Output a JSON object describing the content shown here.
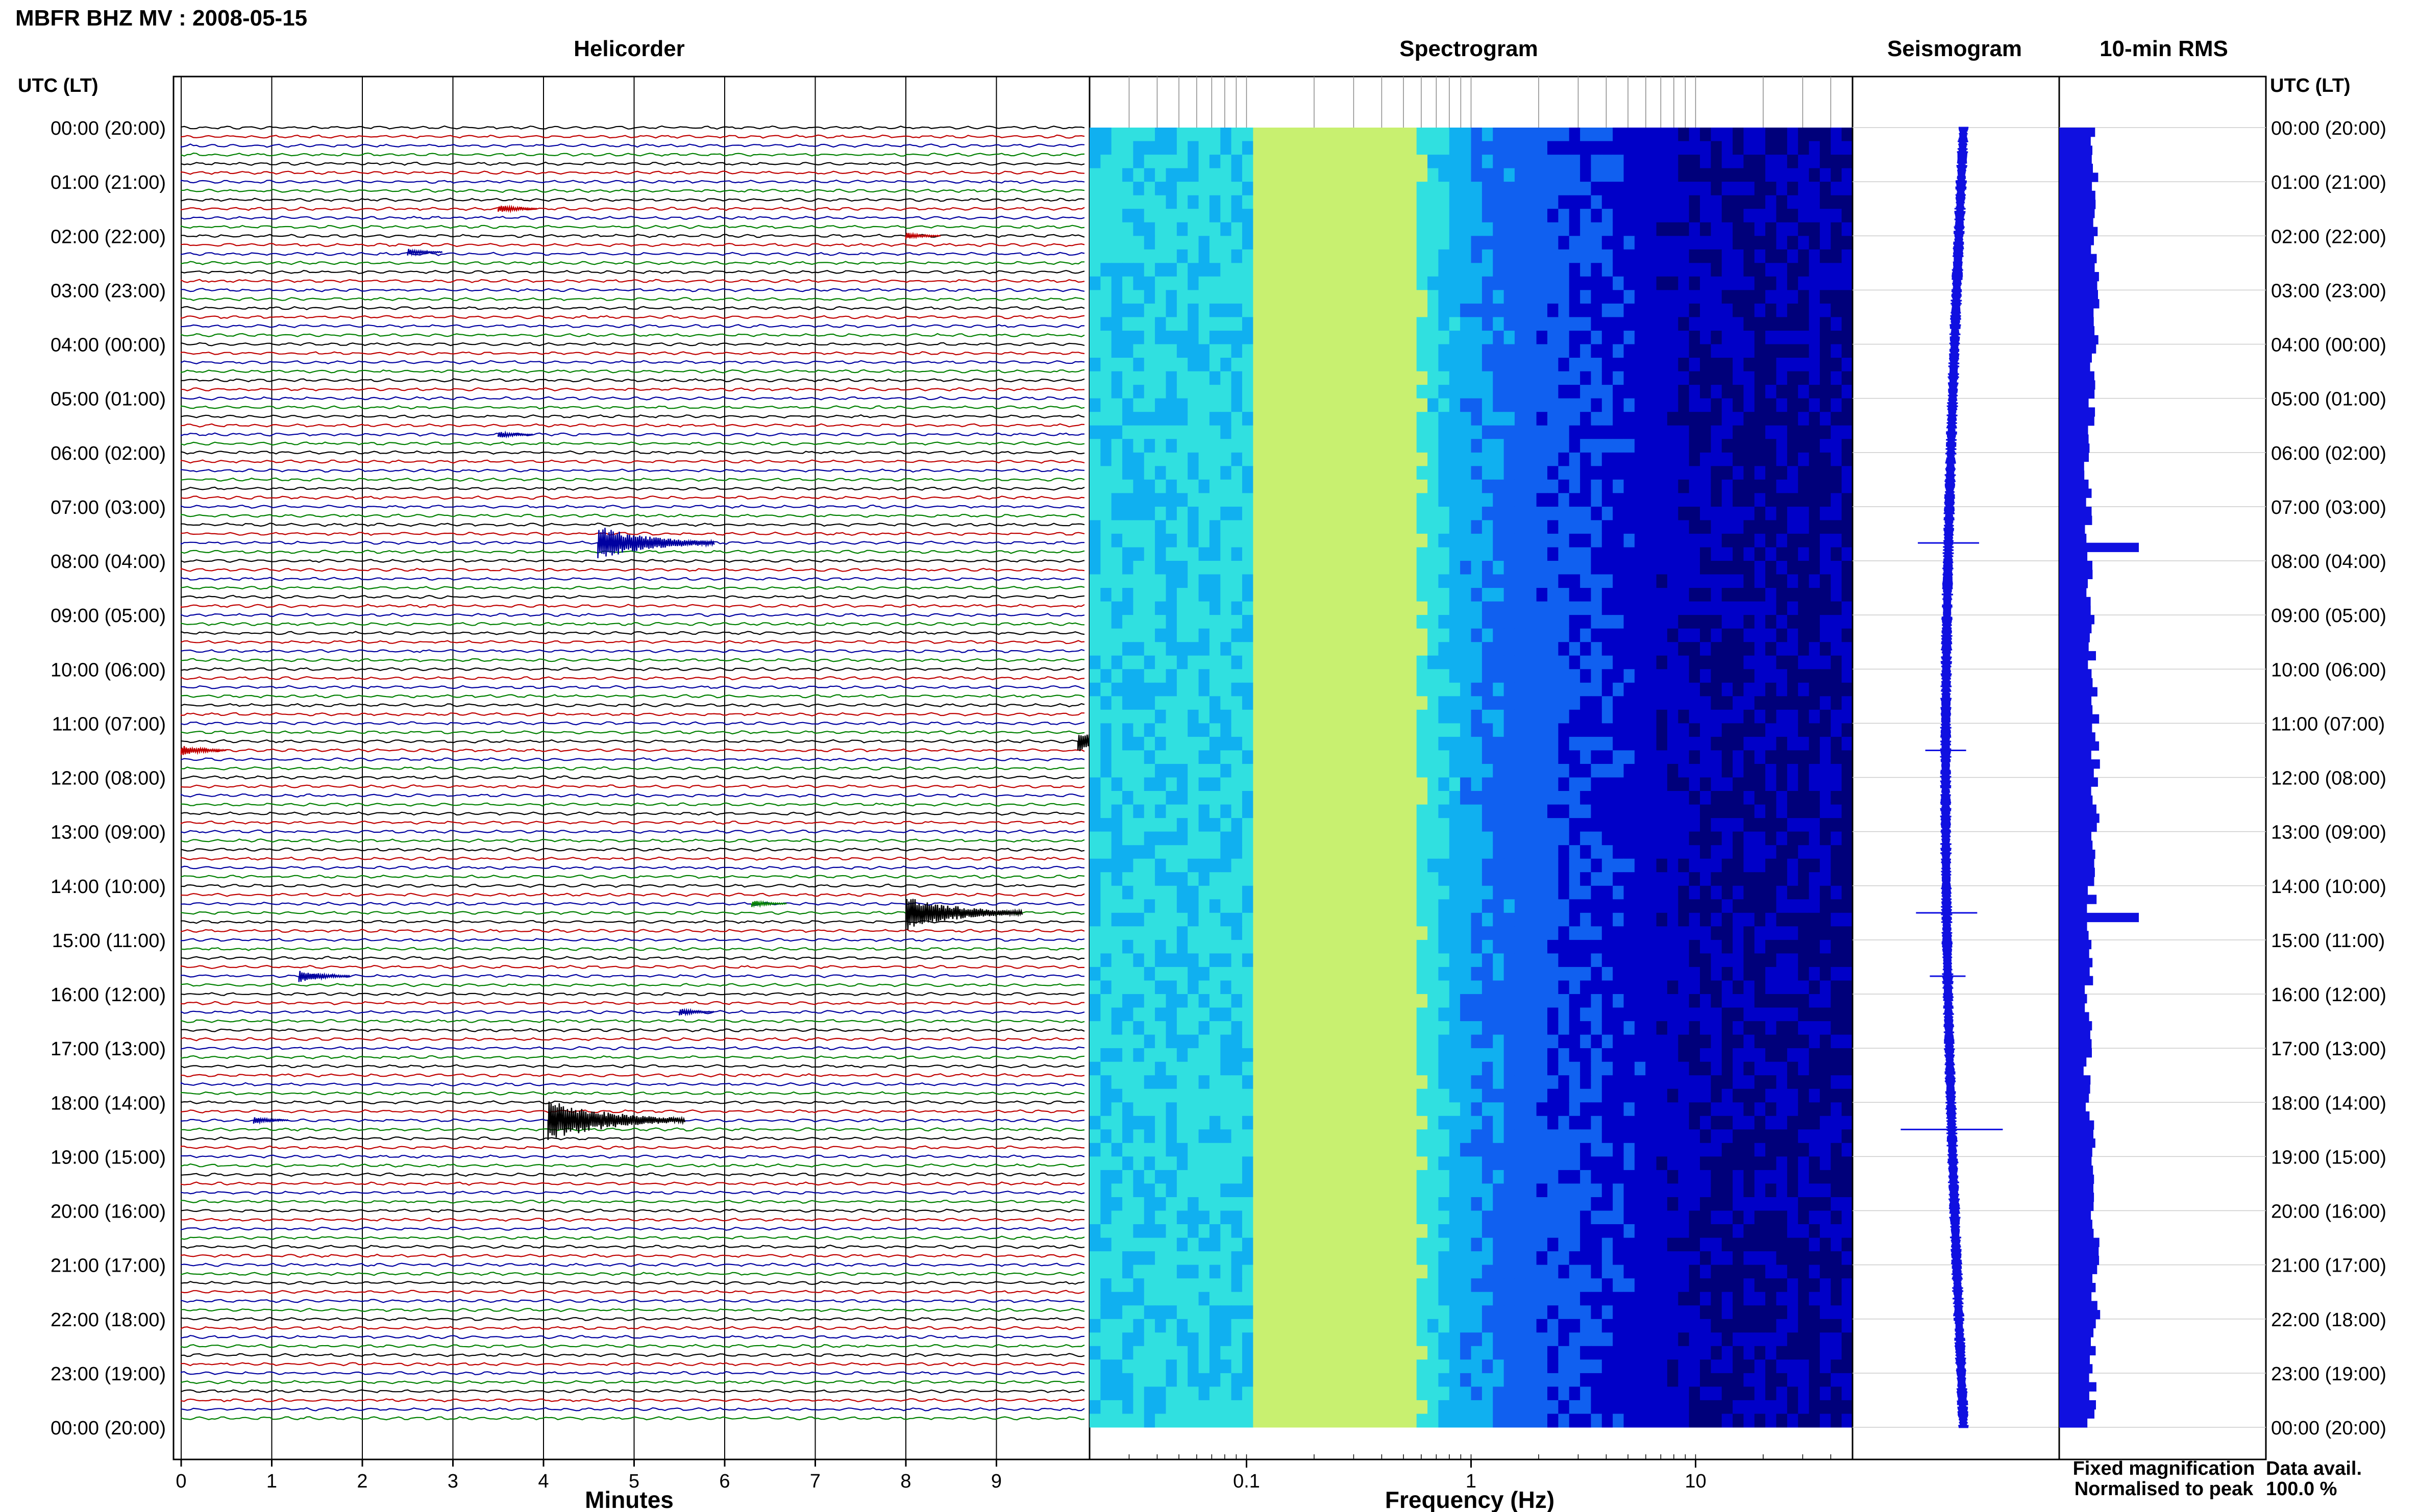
{
  "figure": {
    "title": "MBFR BHZ MV : 2008-05-15",
    "left_axis_label": "UTC (LT)",
    "right_axis_label": "UTC (LT)",
    "legend": {
      "fixed": "Fixed magnification",
      "normalised": "Normalised to peak",
      "fixed_color": "#1010e0",
      "normalised_color": "#e01010"
    },
    "data_avail_label": "Data avail.",
    "data_avail_value": "100.0 %"
  },
  "hour_labels": [
    "00:00 (20:00)",
    "01:00 (21:00)",
    "02:00 (22:00)",
    "03:00 (23:00)",
    "04:00 (00:00)",
    "05:00 (01:00)",
    "06:00 (02:00)",
    "07:00 (03:00)",
    "08:00 (04:00)",
    "09:00 (05:00)",
    "10:00 (06:00)",
    "11:00 (07:00)",
    "12:00 (08:00)",
    "13:00 (09:00)",
    "14:00 (10:00)",
    "15:00 (11:00)",
    "16:00 (12:00)",
    "17:00 (13:00)",
    "18:00 (14:00)",
    "19:00 (15:00)",
    "20:00 (16:00)",
    "21:00 (17:00)",
    "22:00 (18:00)",
    "23:00 (19:00)",
    "00:00 (20:00)"
  ],
  "chart_data": [
    {
      "type": "line",
      "panel": "helicorder",
      "title": "Helicorder",
      "xlabel": "Minutes",
      "xlim": [
        0,
        10
      ],
      "xticks": [
        "0",
        "1",
        "2",
        "3",
        "4",
        "5",
        "6",
        "7",
        "8",
        "9"
      ],
      "trace_colors": [
        "#000000",
        "#c00000",
        "#0000a0",
        "#008000"
      ],
      "traces_per_hour": 6,
      "hours": 24,
      "events": [
        {
          "hour": 1.5,
          "minute": 3.5,
          "color": "#c00000",
          "amp": 1.2
        },
        {
          "hour": 2.0,
          "minute": 8.0,
          "color": "#c00000",
          "amp": 1.0
        },
        {
          "hour": 2.3,
          "minute": 2.5,
          "color": "#0000a0",
          "amp": 1.0
        },
        {
          "hour": 5.67,
          "minute": 3.5,
          "color": "#0000a0",
          "amp": 1.0
        },
        {
          "hour": 7.67,
          "minute": 4.6,
          "color": "#0000a0",
          "amp": 5.0
        },
        {
          "hour": 11.33,
          "minute": 9.9,
          "color": "#000000",
          "amp": 3.0
        },
        {
          "hour": 11.5,
          "minute": 0.0,
          "color": "#c00000",
          "amp": 1.5
        },
        {
          "hour": 14.33,
          "minute": 6.3,
          "color": "#008000",
          "amp": 1.0
        },
        {
          "hour": 14.5,
          "minute": 8.0,
          "color": "#000000",
          "amp": 5.0
        },
        {
          "hour": 15.67,
          "minute": 1.3,
          "color": "#0000a0",
          "amp": 1.8
        },
        {
          "hour": 16.33,
          "minute": 5.5,
          "color": "#0000a0",
          "amp": 1.0
        },
        {
          "hour": 18.33,
          "minute": 4.05,
          "color": "#000000",
          "amp": 6.0
        },
        {
          "hour": 18.33,
          "minute": 0.8,
          "color": "#0000a0",
          "amp": 1.0
        }
      ]
    },
    {
      "type": "heatmap",
      "panel": "spectrogram",
      "title": "Spectrogram",
      "xlabel": "Frequency (Hz)",
      "xscale": "log",
      "xlim": [
        0.02,
        50
      ],
      "xticks": [
        "0.1",
        "1",
        "10"
      ],
      "colormap": [
        "#00007a",
        "#0000c8",
        "#1060f0",
        "#10b0f0",
        "#30e0e0",
        "#c8f070"
      ],
      "peak_frequency_hz": 0.25
    },
    {
      "type": "line",
      "panel": "seismogram",
      "title": "Seismogram",
      "events_hours": [
        7.67,
        11.5,
        14.5,
        15.67,
        18.5
      ]
    },
    {
      "type": "bar",
      "panel": "rms",
      "title": "10-min RMS",
      "orientation": "horizontal",
      "color": "#1010e0",
      "peaks": [
        {
          "hour": 7.67,
          "value": 3.0
        },
        {
          "hour": 14.5,
          "value": 3.0
        }
      ]
    }
  ]
}
